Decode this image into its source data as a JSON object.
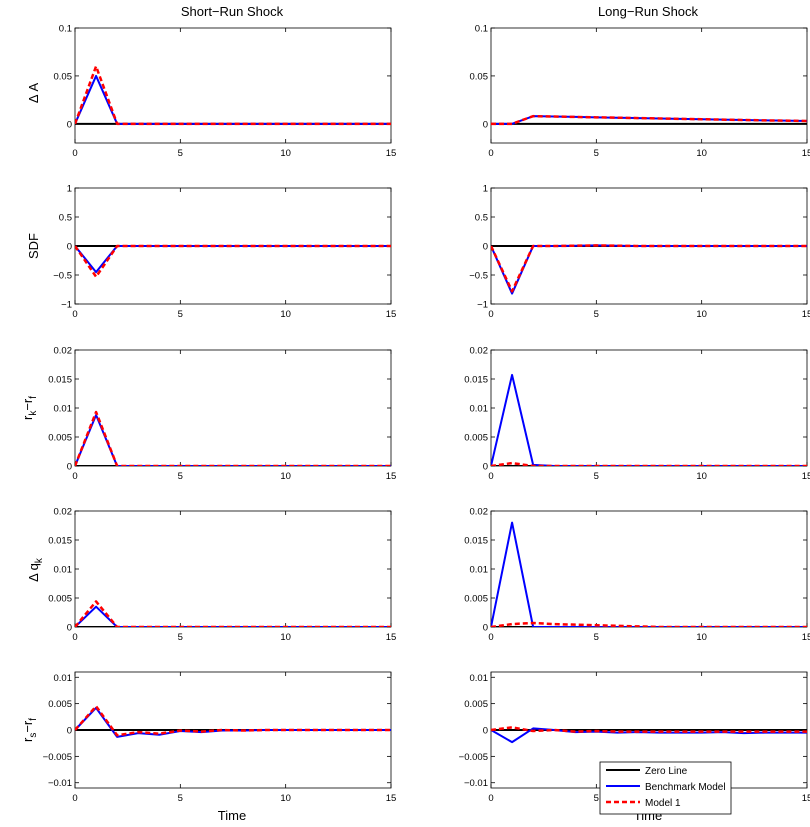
{
  "figure": {
    "column_titles": [
      "Short−Run Shock",
      "Long−Run Shock"
    ],
    "xlabel": "Time",
    "row_labels": [
      {
        "main": "Δ A",
        "sub": ""
      },
      {
        "main": "SDF",
        "sub": ""
      },
      {
        "main": "r",
        "sub": "k",
        "mid": "−r",
        "sub2": "f"
      },
      {
        "main": "Δ q",
        "sub": "k"
      },
      {
        "main": "r",
        "sub": "s",
        "mid": "−r",
        "sub2": "f"
      }
    ],
    "legend": {
      "items": [
        "Zero Line",
        "Benchmark Model",
        "Model 1"
      ],
      "colors": [
        "#000000",
        "#0000ff",
        "#ff0000"
      ]
    }
  },
  "chart_data": [
    {
      "type": "line",
      "row": 0,
      "col": 0,
      "xlim": [
        0,
        15
      ],
      "ylim": [
        -0.02,
        0.1
      ],
      "xticks": [
        "0",
        "5",
        "10",
        "15"
      ],
      "yticks": [
        0,
        0.05,
        0.1
      ],
      "ytick_labels": [
        "0",
        "0.05",
        "0.1"
      ],
      "x": [
        0,
        1,
        2,
        3,
        4,
        5,
        6,
        7,
        8,
        9,
        10,
        11,
        12,
        13,
        14,
        15
      ],
      "series": [
        {
          "name": "Zero Line",
          "values": [
            0,
            0,
            0,
            0,
            0,
            0,
            0,
            0,
            0,
            0,
            0,
            0,
            0,
            0,
            0,
            0
          ]
        },
        {
          "name": "Benchmark Model",
          "values": [
            0,
            0.05,
            0,
            0,
            0,
            0,
            0,
            0,
            0,
            0,
            0,
            0,
            0,
            0,
            0,
            0
          ]
        },
        {
          "name": "Model 1",
          "values": [
            0,
            0.06,
            0,
            0,
            0,
            0,
            0,
            0,
            0,
            0,
            0,
            0,
            0,
            0,
            0,
            0
          ]
        }
      ]
    },
    {
      "type": "line",
      "row": 0,
      "col": 1,
      "xlim": [
        0,
        15
      ],
      "ylim": [
        -0.02,
        0.1
      ],
      "xticks": [
        "0",
        "5",
        "10",
        "15"
      ],
      "yticks": [
        0,
        0.05,
        0.1
      ],
      "ytick_labels": [
        "0",
        "0.05",
        "0.1"
      ],
      "x": [
        0,
        1,
        2,
        3,
        4,
        5,
        6,
        7,
        8,
        9,
        10,
        11,
        12,
        13,
        14,
        15
      ],
      "series": [
        {
          "name": "Zero Line",
          "values": [
            0,
            0,
            0,
            0,
            0,
            0,
            0,
            0,
            0,
            0,
            0,
            0,
            0,
            0,
            0,
            0
          ]
        },
        {
          "name": "Benchmark Model",
          "values": [
            0,
            0,
            0.008,
            0.0076,
            0.0072,
            0.0068,
            0.0064,
            0.006,
            0.0056,
            0.0052,
            0.0048,
            0.0044,
            0.004,
            0.0036,
            0.0033,
            0.003
          ]
        },
        {
          "name": "Model 1",
          "values": [
            0,
            0,
            0.008,
            0.0076,
            0.0072,
            0.0068,
            0.0064,
            0.006,
            0.0056,
            0.0052,
            0.0048,
            0.0044,
            0.004,
            0.0036,
            0.0033,
            0.003
          ]
        }
      ]
    },
    {
      "type": "line",
      "row": 1,
      "col": 0,
      "xlim": [
        0,
        15
      ],
      "ylim": [
        -1,
        1
      ],
      "xticks": [
        "0",
        "5",
        "10",
        "15"
      ],
      "yticks": [
        -1,
        -0.5,
        0,
        0.5,
        1
      ],
      "ytick_labels": [
        "−1",
        "−0.5",
        "0",
        "0.5",
        "1"
      ],
      "x": [
        0,
        1,
        2,
        3,
        4,
        5,
        6,
        7,
        8,
        9,
        10,
        11,
        12,
        13,
        14,
        15
      ],
      "series": [
        {
          "name": "Zero Line",
          "values": [
            0,
            0,
            0,
            0,
            0,
            0,
            0,
            0,
            0,
            0,
            0,
            0,
            0,
            0,
            0,
            0
          ]
        },
        {
          "name": "Benchmark Model",
          "values": [
            0,
            -0.45,
            0,
            0,
            0,
            0,
            0,
            0,
            0,
            0,
            0,
            0,
            0,
            0,
            0,
            0
          ]
        },
        {
          "name": "Model 1",
          "values": [
            0,
            -0.53,
            0,
            0,
            0,
            0,
            0,
            0,
            0,
            0,
            0,
            0,
            0,
            0,
            0,
            0
          ]
        }
      ]
    },
    {
      "type": "line",
      "row": 1,
      "col": 1,
      "xlim": [
        0,
        15
      ],
      "ylim": [
        -1,
        1
      ],
      "xticks": [
        "0",
        "5",
        "10",
        "15"
      ],
      "yticks": [
        -1,
        -0.5,
        0,
        0.5,
        1
      ],
      "ytick_labels": [
        "−1",
        "−0.5",
        "0",
        "0.5",
        "1"
      ],
      "x": [
        0,
        1,
        2,
        3,
        4,
        5,
        6,
        7,
        8,
        9,
        10,
        11,
        12,
        13,
        14,
        15
      ],
      "series": [
        {
          "name": "Zero Line",
          "values": [
            0,
            0,
            0,
            0,
            0,
            0,
            0,
            0,
            0,
            0,
            0,
            0,
            0,
            0,
            0,
            0
          ]
        },
        {
          "name": "Benchmark Model",
          "values": [
            0,
            -0.82,
            0,
            0,
            0.005,
            0.01,
            0.005,
            0,
            0,
            0,
            0,
            0,
            0,
            0,
            0,
            0
          ]
        },
        {
          "name": "Model 1",
          "values": [
            0,
            -0.78,
            0,
            0,
            0.005,
            0.01,
            0.005,
            0,
            0,
            0,
            0,
            0,
            0,
            0,
            0,
            0
          ]
        }
      ]
    },
    {
      "type": "line",
      "row": 2,
      "col": 0,
      "xlim": [
        0,
        15
      ],
      "ylim": [
        0,
        0.02
      ],
      "xticks": [
        "0",
        "5",
        "10",
        "15"
      ],
      "yticks": [
        0,
        0.005,
        0.01,
        0.015,
        0.02
      ],
      "ytick_labels": [
        "0",
        "0.005",
        "0.01",
        "0.015",
        "0.02"
      ],
      "x": [
        0,
        1,
        2,
        3,
        4,
        5,
        6,
        7,
        8,
        9,
        10,
        11,
        12,
        13,
        14,
        15
      ],
      "series": [
        {
          "name": "Zero Line",
          "values": [
            0,
            0,
            0,
            0,
            0,
            0,
            0,
            0,
            0,
            0,
            0,
            0,
            0,
            0,
            0,
            0
          ]
        },
        {
          "name": "Benchmark Model",
          "values": [
            0,
            0.0088,
            0,
            0,
            0,
            0,
            0,
            0,
            0,
            0,
            0,
            0,
            0,
            0,
            0,
            0
          ]
        },
        {
          "name": "Model 1",
          "values": [
            0,
            0.0093,
            0,
            0,
            0,
            0,
            0,
            0,
            0,
            0,
            0,
            0,
            0,
            0,
            0,
            0
          ]
        }
      ]
    },
    {
      "type": "line",
      "row": 2,
      "col": 1,
      "xlim": [
        0,
        15
      ],
      "ylim": [
        0,
        0.02
      ],
      "xticks": [
        "0",
        "5",
        "10",
        "15"
      ],
      "yticks": [
        0,
        0.005,
        0.01,
        0.015,
        0.02
      ],
      "ytick_labels": [
        "0",
        "0.005",
        "0.01",
        "0.015",
        "0.02"
      ],
      "x": [
        0,
        1,
        2,
        3,
        4,
        5,
        6,
        7,
        8,
        9,
        10,
        11,
        12,
        13,
        14,
        15
      ],
      "series": [
        {
          "name": "Zero Line",
          "values": [
            0,
            0,
            0,
            0,
            0,
            0,
            0,
            0,
            0,
            0,
            0,
            0,
            0,
            0,
            0,
            0
          ]
        },
        {
          "name": "Benchmark Model",
          "values": [
            0,
            0.0157,
            0.0002,
            0,
            0,
            0,
            0,
            0,
            0,
            0,
            0,
            0,
            0,
            0,
            0,
            0
          ]
        },
        {
          "name": "Model 1",
          "values": [
            0,
            0.0005,
            0,
            0,
            0,
            0,
            0,
            0,
            0,
            0,
            0,
            0,
            0,
            0,
            0,
            0
          ]
        }
      ]
    },
    {
      "type": "line",
      "row": 3,
      "col": 0,
      "xlim": [
        0,
        15
      ],
      "ylim": [
        0,
        0.02
      ],
      "xticks": [
        "0",
        "5",
        "10",
        "15"
      ],
      "yticks": [
        0,
        0.005,
        0.01,
        0.015,
        0.02
      ],
      "ytick_labels": [
        "0",
        "0.005",
        "0.01",
        "0.015",
        "0.02"
      ],
      "x": [
        0,
        1,
        2,
        3,
        4,
        5,
        6,
        7,
        8,
        9,
        10,
        11,
        12,
        13,
        14,
        15
      ],
      "series": [
        {
          "name": "Zero Line",
          "values": [
            0,
            0,
            0,
            0,
            0,
            0,
            0,
            0,
            0,
            0,
            0,
            0,
            0,
            0,
            0,
            0
          ]
        },
        {
          "name": "Benchmark Model",
          "values": [
            0,
            0.0035,
            0,
            0,
            0,
            0,
            0,
            0,
            0,
            0,
            0,
            0,
            0,
            0,
            0,
            0
          ]
        },
        {
          "name": "Model 1",
          "values": [
            0,
            0.0044,
            0,
            0,
            0,
            0,
            0,
            0,
            0,
            0,
            0,
            0,
            0,
            0,
            0,
            0
          ]
        }
      ]
    },
    {
      "type": "line",
      "row": 3,
      "col": 1,
      "xlim": [
        0,
        15
      ],
      "ylim": [
        0,
        0.02
      ],
      "xticks": [
        "0",
        "5",
        "10",
        "15"
      ],
      "yticks": [
        0,
        0.005,
        0.01,
        0.015,
        0.02
      ],
      "ytick_labels": [
        "0",
        "0.005",
        "0.01",
        "0.015",
        "0.02"
      ],
      "x": [
        0,
        1,
        2,
        3,
        4,
        5,
        6,
        7,
        8,
        9,
        10,
        11,
        12,
        13,
        14,
        15
      ],
      "series": [
        {
          "name": "Zero Line",
          "values": [
            0,
            0,
            0,
            0,
            0,
            0,
            0,
            0,
            0,
            0,
            0,
            0,
            0,
            0,
            0,
            0
          ]
        },
        {
          "name": "Benchmark Model",
          "values": [
            0,
            0.018,
            0,
            0,
            0,
            0,
            0,
            0,
            0,
            0,
            0,
            0,
            0,
            0,
            0,
            0
          ]
        },
        {
          "name": "Model 1",
          "values": [
            0,
            0.0005,
            0.0007,
            0.0005,
            0.0004,
            0.0003,
            0.0002,
            0.0001,
            0,
            0,
            0,
            0,
            0,
            0,
            0,
            0
          ]
        }
      ]
    },
    {
      "type": "line",
      "row": 4,
      "col": 0,
      "xlim": [
        0,
        15
      ],
      "ylim": [
        -0.011,
        0.011
      ],
      "xticks": [
        "0",
        "5",
        "10",
        "15"
      ],
      "yticks": [
        -0.01,
        -0.005,
        0,
        0.005,
        0.01
      ],
      "ytick_labels": [
        "−0.01",
        "−0.005",
        "0",
        "0.005",
        "0.01"
      ],
      "x": [
        0,
        1,
        2,
        3,
        4,
        5,
        6,
        7,
        8,
        9,
        10,
        11,
        12,
        13,
        14,
        15
      ],
      "series": [
        {
          "name": "Zero Line",
          "values": [
            0,
            0,
            0,
            0,
            0,
            0,
            0,
            0,
            0,
            0,
            0,
            0,
            0,
            0,
            0,
            0
          ]
        },
        {
          "name": "Benchmark Model",
          "values": [
            0,
            0.0042,
            -0.0013,
            -0.0006,
            -0.0009,
            -0.0002,
            -0.0004,
            -0.0001,
            -0.0001,
            0,
            0,
            0,
            0,
            0,
            0,
            0
          ]
        },
        {
          "name": "Model 1",
          "values": [
            0,
            0.0045,
            -0.001,
            -0.0004,
            -0.0007,
            -0.0001,
            -0.0003,
            0,
            -0.0001,
            0,
            0,
            0,
            0,
            0,
            0,
            0
          ]
        }
      ]
    },
    {
      "type": "line",
      "row": 4,
      "col": 1,
      "xlim": [
        0,
        15
      ],
      "ylim": [
        -0.011,
        0.011
      ],
      "xticks": [
        "0",
        "5",
        "10",
        "15"
      ],
      "yticks": [
        -0.01,
        -0.005,
        0,
        0.005,
        0.01
      ],
      "ytick_labels": [
        "−0.01",
        "−0.005",
        "0",
        "0.005",
        "0.01"
      ],
      "x": [
        0,
        1,
        2,
        3,
        4,
        5,
        6,
        7,
        8,
        9,
        10,
        11,
        12,
        13,
        14,
        15
      ],
      "series": [
        {
          "name": "Zero Line",
          "values": [
            0,
            0,
            0,
            0,
            0,
            0,
            0,
            0,
            0,
            0,
            0,
            0,
            0,
            0,
            0,
            0
          ]
        },
        {
          "name": "Benchmark Model",
          "values": [
            0,
            -0.0023,
            0.0003,
            0,
            -0.0004,
            -0.0003,
            -0.0005,
            -0.0004,
            -0.0005,
            -0.0005,
            -0.0005,
            -0.0004,
            -0.0006,
            -0.0005,
            -0.0005,
            -0.0005
          ]
        },
        {
          "name": "Model 1",
          "values": [
            0,
            0.0005,
            -0.0002,
            0,
            -0.0003,
            -0.0002,
            -0.0003,
            -0.0003,
            -0.0003,
            -0.0003,
            -0.0003,
            -0.0003,
            -0.0003,
            -0.0003,
            -0.0003,
            -0.0003
          ]
        }
      ]
    }
  ]
}
